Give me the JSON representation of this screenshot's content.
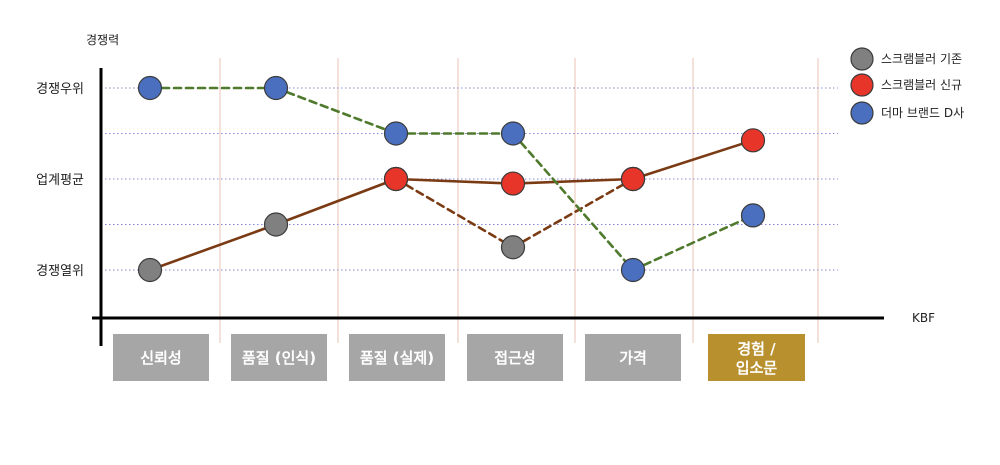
{
  "chart_data": {
    "type": "line",
    "ylabel": "경쟁력",
    "xlabel": "KBF",
    "y_levels": [
      "경쟁열위",
      "",
      "업계평균",
      "",
      "경쟁우위"
    ],
    "categories": [
      {
        "label": "신뢰성",
        "color": "#a6a6a6"
      },
      {
        "label": "품질 (인식)",
        "color": "#a6a6a6"
      },
      {
        "label": "품질 (실제)",
        "color": "#a6a6a6"
      },
      {
        "label": "접근성",
        "color": "#a6a6a6"
      },
      {
        "label": "가격",
        "color": "#a6a6a6"
      },
      {
        "label": "경험 /\n입소문",
        "color": "#b8902e"
      }
    ],
    "legend": [
      {
        "name": "스크램블러 기존",
        "color": "#808080"
      },
      {
        "name": "스크램블러 신규",
        "color": "#e8352a"
      },
      {
        "name": "더마 브랜드 D사",
        "color": "#4a6fbf"
      }
    ],
    "series": [
      {
        "name": "스크램블러 기존",
        "color": "#808080",
        "line_color": "#7a3b14",
        "line_style": "solid",
        "values": [
          0,
          1,
          2,
          null,
          2,
          null
        ]
      },
      {
        "name": "스크램블러 기존",
        "color": "#808080",
        "line_color": "#7a3b14",
        "line_style": "dashed",
        "values": [
          null,
          null,
          2,
          0.5,
          2,
          null
        ]
      },
      {
        "name": "스크램블러 신규",
        "color": "#e8352a",
        "line_color": "#7a3b14",
        "line_style": "solid",
        "values": [
          null,
          null,
          2,
          1.9,
          2,
          2.85
        ]
      },
      {
        "name": "더마 브랜드 D사",
        "color": "#4a6fbf",
        "line_color": "#4f7a2e",
        "line_style": "dashed",
        "values": [
          4,
          4,
          3,
          3,
          0,
          1.2
        ]
      }
    ],
    "ylim": [
      0,
      4
    ],
    "grid": true
  },
  "colors": {
    "grid_h": "#8a8ad8",
    "grid_v": "#e9c4b4",
    "axis": "#000000"
  }
}
